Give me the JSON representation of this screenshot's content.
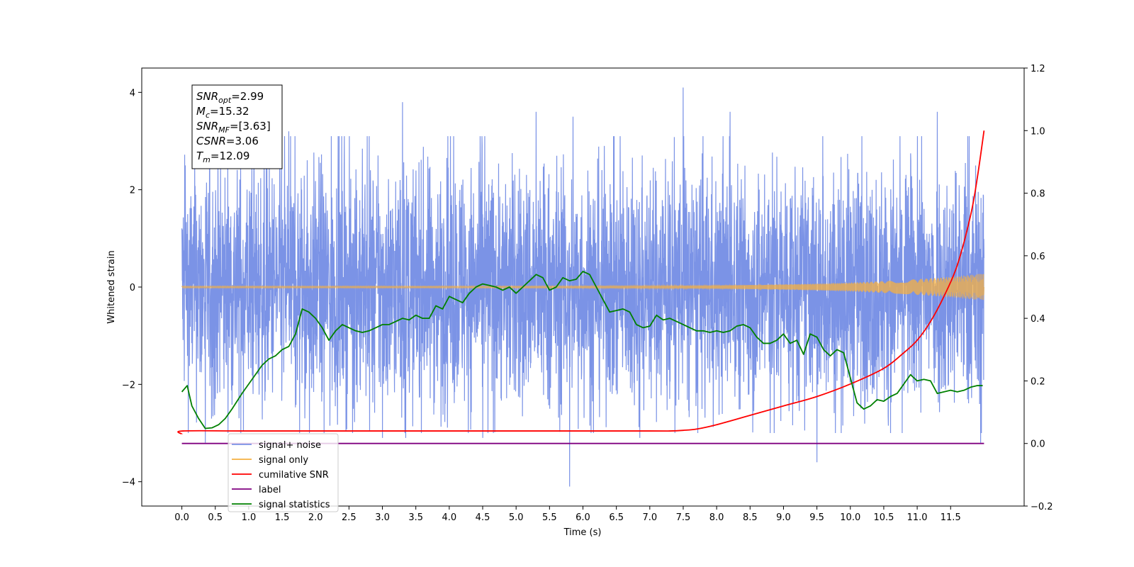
{
  "chart_data": {
    "type": "line",
    "xlabel": "Time (s)",
    "ylabel_left": "Whitened strain",
    "ylabel_right": "",
    "xlim": [
      -0.6,
      12.6
    ],
    "ylim_left": [
      -4.5,
      4.5
    ],
    "ylim_right": [
      -0.2,
      1.2
    ],
    "x_ticks": [
      "0.0",
      "0.5",
      "1.0",
      "1.5",
      "2.0",
      "2.5",
      "3.0",
      "3.5",
      "4.0",
      "4.5",
      "5.0",
      "5.5",
      "6.0",
      "6.5",
      "7.0",
      "7.5",
      "8.0",
      "8.5",
      "9.0",
      "9.5",
      "10.0",
      "10.5",
      "11.0",
      "11.5"
    ],
    "y_ticks_left": [
      "−4",
      "−2",
      "0",
      "2",
      "4"
    ],
    "y_ticks_right": [
      "−0.2",
      "0.0",
      "0.2",
      "0.4",
      "0.6",
      "0.8",
      "1.0",
      "1.2"
    ],
    "grid": false,
    "legend_position": "lower-left",
    "info_box": {
      "lines": [
        {
          "main": "SNR",
          "sub": "opt",
          "value": "=2.99"
        },
        {
          "main": "M",
          "sub": "c",
          "value": "=15.32"
        },
        {
          "main": "SNR",
          "sub": "MF",
          "value": "=[3.63]"
        },
        {
          "main": "CSNR",
          "sub": "",
          "value": "=3.06"
        },
        {
          "main": "T",
          "sub": "m",
          "value": "=12.09"
        }
      ]
    },
    "series": [
      {
        "name": "signal+ noise",
        "color": "#7b93e6",
        "axis": "left",
        "style": "noise",
        "x_range": [
          0.0,
          12.0
        ],
        "envelope_typical": 1.3,
        "peaks": [
          [
            0.05,
            2.5
          ],
          [
            0.35,
            -3.2
          ],
          [
            1.6,
            3.2
          ],
          [
            3.0,
            -3.1
          ],
          [
            3.3,
            3.8
          ],
          [
            3.35,
            -3.1
          ],
          [
            4.5,
            -3.1
          ],
          [
            5.3,
            3.6
          ],
          [
            5.8,
            -4.1
          ],
          [
            5.85,
            3.5
          ],
          [
            6.85,
            -3.1
          ],
          [
            7.5,
            4.1
          ],
          [
            8.2,
            3.6
          ],
          [
            9.5,
            -3.6
          ],
          [
            11.3,
            3.6
          ],
          [
            11.95,
            -3.2
          ]
        ]
      },
      {
        "name": "signal only",
        "color": "#f5b041",
        "axis": "left",
        "style": "chirp",
        "x_range": [
          0.0,
          12.0
        ],
        "amplitude_start": 0.02,
        "amplitude_end": 0.28
      },
      {
        "name": "cumilative SNR",
        "color": "#ff0000",
        "axis": "right",
        "x": [
          0.0,
          0.02,
          1.0,
          3.0,
          5.0,
          7.0,
          7.3,
          7.5,
          7.7,
          8.0,
          8.5,
          9.0,
          9.5,
          10.0,
          10.5,
          10.8,
          11.0,
          11.2,
          11.4,
          11.6,
          11.8,
          11.9,
          12.0
        ],
        "y": [
          0.03,
          0.04,
          0.04,
          0.04,
          0.04,
          0.04,
          0.04,
          0.042,
          0.046,
          0.06,
          0.09,
          0.12,
          0.15,
          0.19,
          0.24,
          0.29,
          0.33,
          0.39,
          0.47,
          0.57,
          0.73,
          0.85,
          1.0
        ]
      },
      {
        "name": "label",
        "color": "#800080",
        "axis": "right",
        "x": [
          0.0,
          12.0
        ],
        "y": [
          0.0,
          0.0
        ]
      },
      {
        "name": "signal statistics",
        "color": "#008000",
        "axis": "right",
        "x": [
          0.0,
          0.08,
          0.15,
          0.25,
          0.35,
          0.45,
          0.55,
          0.65,
          0.75,
          0.9,
          1.0,
          1.1,
          1.2,
          1.3,
          1.4,
          1.5,
          1.6,
          1.7,
          1.8,
          1.9,
          2.0,
          2.1,
          2.2,
          2.3,
          2.4,
          2.5,
          2.6,
          2.7,
          2.8,
          2.9,
          3.0,
          3.1,
          3.2,
          3.3,
          3.4,
          3.5,
          3.6,
          3.7,
          3.8,
          3.9,
          4.0,
          4.1,
          4.2,
          4.3,
          4.4,
          4.5,
          4.6,
          4.7,
          4.8,
          4.9,
          5.0,
          5.1,
          5.2,
          5.3,
          5.4,
          5.5,
          5.6,
          5.7,
          5.8,
          5.9,
          6.0,
          6.1,
          6.2,
          6.3,
          6.4,
          6.5,
          6.6,
          6.7,
          6.8,
          6.9,
          7.0,
          7.1,
          7.2,
          7.3,
          7.4,
          7.5,
          7.6,
          7.7,
          7.8,
          7.9,
          8.0,
          8.1,
          8.2,
          8.3,
          8.4,
          8.5,
          8.6,
          8.7,
          8.8,
          8.9,
          9.0,
          9.1,
          9.2,
          9.3,
          9.4,
          9.5,
          9.6,
          9.7,
          9.8,
          9.9,
          10.0,
          10.1,
          10.2,
          10.3,
          10.4,
          10.5,
          10.6,
          10.7,
          10.8,
          10.9,
          11.0,
          11.1,
          11.2,
          11.3,
          11.4,
          11.5,
          11.6,
          11.7,
          11.8,
          11.9,
          11.98
        ],
        "y": [
          0.165,
          0.185,
          0.12,
          0.08,
          0.048,
          0.05,
          0.06,
          0.08,
          0.11,
          0.16,
          0.19,
          0.22,
          0.25,
          0.27,
          0.28,
          0.3,
          0.31,
          0.35,
          0.43,
          0.42,
          0.4,
          0.37,
          0.33,
          0.36,
          0.38,
          0.37,
          0.36,
          0.355,
          0.36,
          0.37,
          0.38,
          0.38,
          0.39,
          0.4,
          0.395,
          0.41,
          0.4,
          0.4,
          0.44,
          0.43,
          0.47,
          0.46,
          0.45,
          0.48,
          0.5,
          0.51,
          0.505,
          0.5,
          0.49,
          0.5,
          0.48,
          0.5,
          0.52,
          0.54,
          0.53,
          0.49,
          0.5,
          0.53,
          0.52,
          0.525,
          0.55,
          0.54,
          0.5,
          0.46,
          0.42,
          0.425,
          0.43,
          0.42,
          0.38,
          0.37,
          0.375,
          0.41,
          0.395,
          0.4,
          0.39,
          0.38,
          0.37,
          0.36,
          0.36,
          0.355,
          0.36,
          0.355,
          0.36,
          0.375,
          0.38,
          0.37,
          0.34,
          0.32,
          0.32,
          0.33,
          0.35,
          0.32,
          0.33,
          0.285,
          0.35,
          0.34,
          0.3,
          0.28,
          0.3,
          0.29,
          0.21,
          0.13,
          0.11,
          0.12,
          0.14,
          0.135,
          0.15,
          0.16,
          0.19,
          0.22,
          0.2,
          0.205,
          0.2,
          0.16,
          0.165,
          0.17,
          0.165,
          0.17,
          0.18,
          0.185,
          0.185
        ]
      }
    ],
    "legend_entries": [
      {
        "label": "signal+ noise",
        "color": "#7b93e6"
      },
      {
        "label": "signal only",
        "color": "#f5b041"
      },
      {
        "label": "cumilative SNR",
        "color": "#ff0000"
      },
      {
        "label": "label",
        "color": "#800080"
      },
      {
        "label": "signal statistics",
        "color": "#008000"
      }
    ]
  }
}
